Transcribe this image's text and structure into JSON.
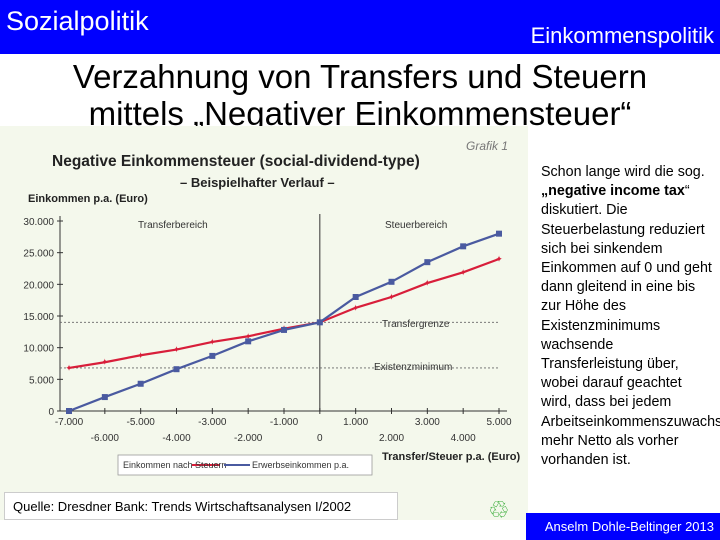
{
  "header": {
    "left": "Sozialpolitik",
    "right": "Einkommenspolitik"
  },
  "slide_title": {
    "line1": "Verzahnung von Transfers und Steuern",
    "line2": "mittels „Negativer Einkommensteuer“"
  },
  "side_text": {
    "part1": "Schon lange wird die sog. ",
    "bold": "„negative income tax",
    "part2": "“ diskutiert. Die Steuerbelastung reduziert sich bei sinkendem Einkommen auf 0 und geht dann gleitend in eine bis zur Höhe des Existenzminimums wachsende Transferleistung über, wobei darauf geachtet wird, dass bei jedem Arbeitseinkommenszuwachs mehr Netto als vorher vorhanden ist."
  },
  "source": "Quelle: Dresdner Bank: Trends Wirtschaftsanalysen I/2002",
  "footer": "Anselm Dohle-Beltinger 2013",
  "colors": {
    "header_bg": "#0000ff",
    "net_income": "#d81e3a",
    "earned_income": "#4a5aa0"
  },
  "icon": "recycle-icon",
  "chart_data": {
    "type": "line",
    "grafik_label": "Grafik 1",
    "title": "Negative Einkommensteuer (social-dividend-type)",
    "subtitle": "– Beispielhafter Verlauf –",
    "ylabel": "Einkommen p.a. (Euro)",
    "xlabel": "Transfer/Steuer p.a. (Euro)",
    "xlim": [
      -7000,
      5000
    ],
    "ylim": [
      0,
      30000
    ],
    "x_ticks_upper": [
      "-7.000",
      "-5.000",
      "-3.000",
      "-1.000",
      "1.000",
      "3.000",
      "5.000"
    ],
    "x_ticks_lower": [
      "-6.000",
      "-4.000",
      "-2.000",
      "0",
      "2.000",
      "4.000"
    ],
    "y_ticks": [
      "0",
      "5.000",
      "10.000",
      "15.000",
      "20.000",
      "25.000",
      "30.000"
    ],
    "annotations": {
      "transfer_region": "Transferbereich",
      "tax_region": "Steuerbereich",
      "transfer_limit": "Transfergrenze",
      "subsistence": "Existenzminimum"
    },
    "reference_lines": {
      "transfer_limit_y": 14000,
      "subsistence_y": 6800,
      "zero_x": 0
    },
    "series": [
      {
        "name": "Einkommen nach Steuern",
        "x": [
          -7000,
          -6000,
          -5000,
          -4000,
          -3000,
          -2000,
          -1000,
          0,
          1000,
          2000,
          3000,
          4000,
          5000
        ],
        "y": [
          6800,
          7700,
          8800,
          9700,
          10900,
          11800,
          13000,
          14000,
          16300,
          18000,
          20200,
          21900,
          24000
        ]
      },
      {
        "name": "Erwerbseinkommen p.a.",
        "x": [
          -7000,
          -6000,
          -5000,
          -4000,
          -3000,
          -2000,
          -1000,
          0,
          1000,
          2000,
          3000,
          4000,
          5000
        ],
        "y": [
          0,
          2200,
          4300,
          6600,
          8700,
          11000,
          12800,
          14000,
          18000,
          20400,
          23500,
          26000,
          28000
        ]
      }
    ]
  }
}
